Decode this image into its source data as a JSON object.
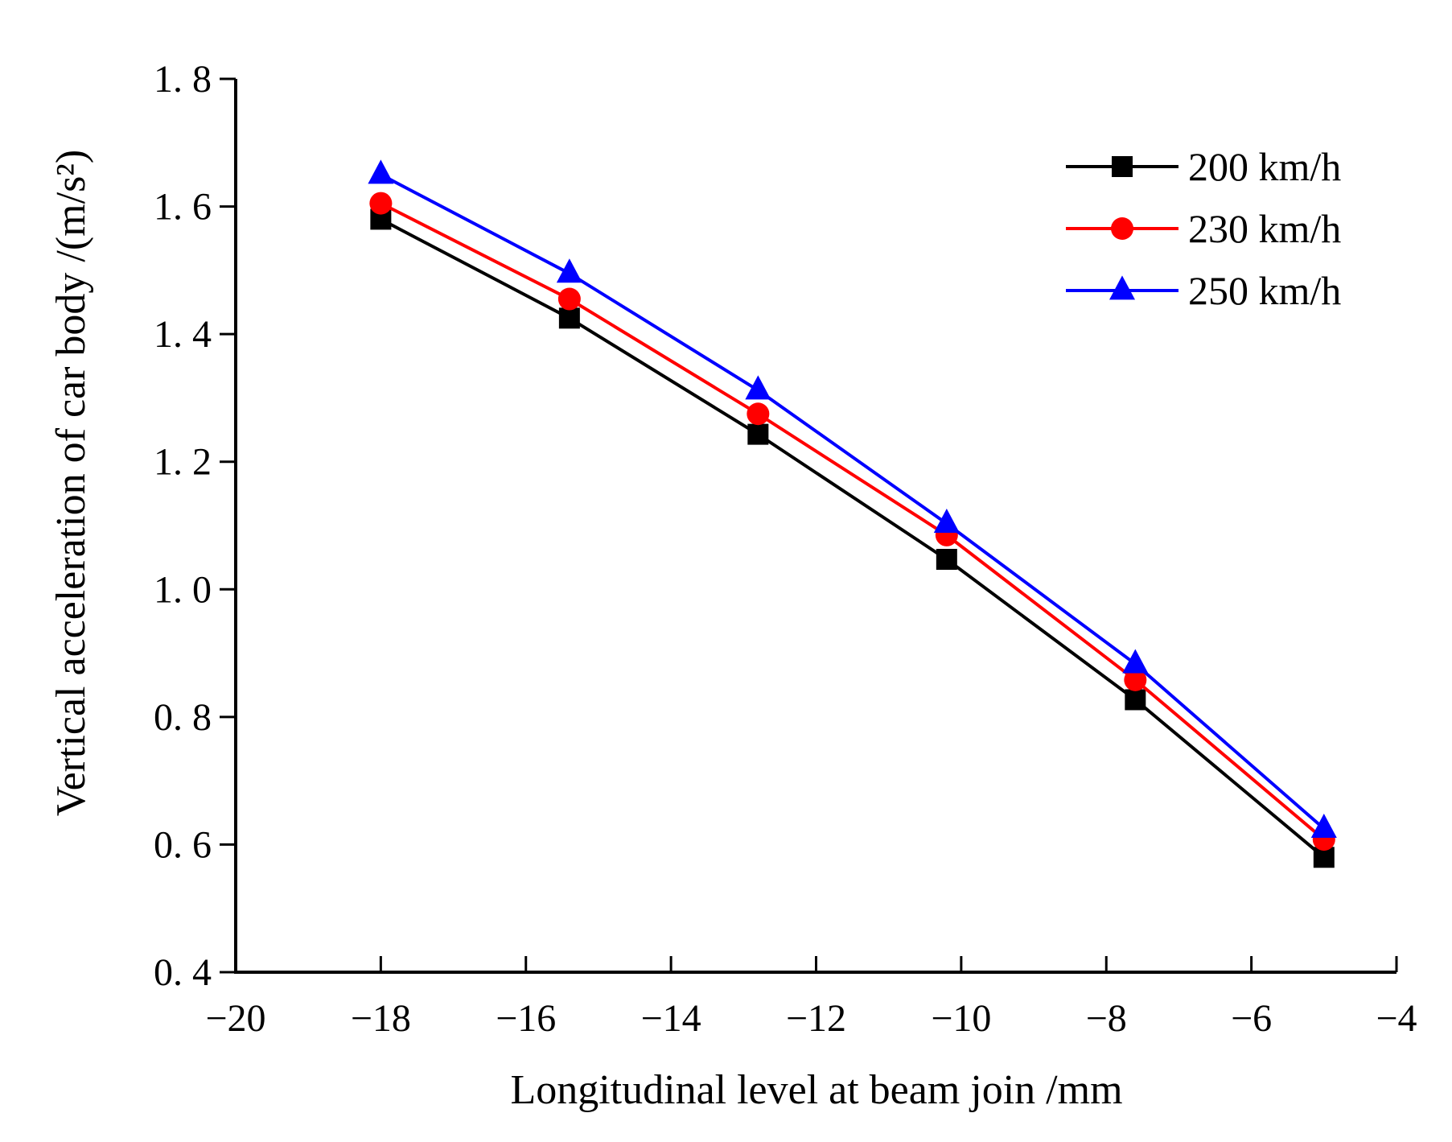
{
  "chart_data": {
    "type": "line",
    "title": "",
    "xlabel": "Longitudinal level at beam join /mm",
    "ylabel": "Vertical acceleration of car body /(m/s²)",
    "xlim": [
      -20,
      -4
    ],
    "ylim": [
      0.4,
      1.8
    ],
    "xticks": [
      -20,
      -18,
      -16,
      -14,
      -12,
      -10,
      -8,
      -6,
      -4
    ],
    "xtick_labels": [
      "−20",
      "−18",
      "−16",
      "−14",
      "−12",
      "−10",
      "−8",
      "−6",
      "−4"
    ],
    "yticks": [
      0.4,
      0.6,
      0.8,
      1.0,
      1.2,
      1.4,
      1.6,
      1.8
    ],
    "ytick_labels": [
      "0. 4",
      "0. 6",
      "0. 8",
      "1. 0",
      "1. 2",
      "1. 4",
      "1. 6",
      "1. 8"
    ],
    "grid": false,
    "legend_position": "top-right",
    "x": [
      -18,
      -15.4,
      -12.8,
      -10.2,
      -7.6,
      -5.0
    ],
    "series": [
      {
        "name": "200 km/h",
        "color": "#000000",
        "marker": "square",
        "values": [
          1.58,
          1.425,
          1.243,
          1.047,
          0.827,
          0.58
        ]
      },
      {
        "name": "230 km/h",
        "color": "#ff0000",
        "marker": "circle",
        "values": [
          1.605,
          1.455,
          1.275,
          1.085,
          0.858,
          0.608
        ]
      },
      {
        "name": "250 km/h",
        "color": "#0000ff",
        "marker": "triangle",
        "values": [
          1.65,
          1.495,
          1.312,
          1.103,
          0.883,
          0.625
        ]
      }
    ]
  }
}
